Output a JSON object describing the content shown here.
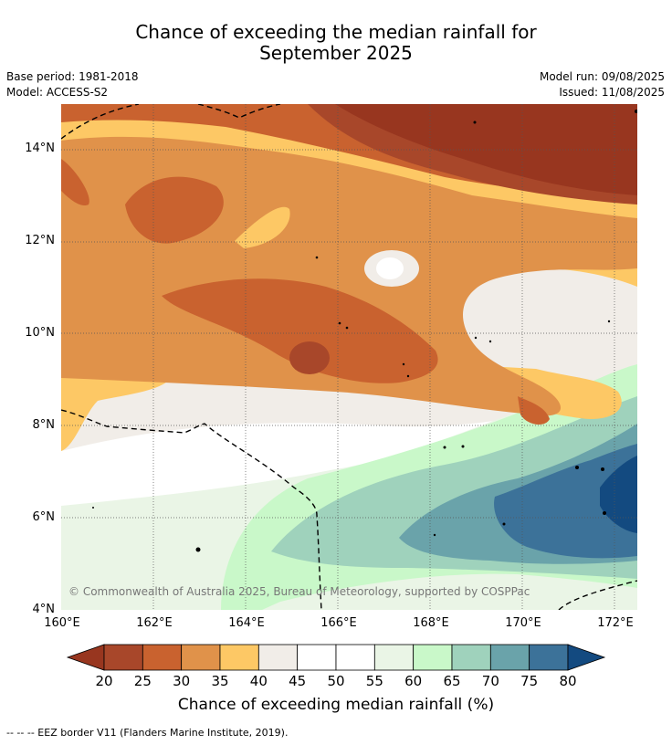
{
  "title_line1": "Chance of exceeding the median rainfall for",
  "title_line2": "September 2025",
  "base_period": "Base period: 1981-2018",
  "model": "Model: ACCESS-S2",
  "model_run": "Model run: 09/08/2025",
  "issued": "Issued: 11/08/2025",
  "copyright": "© Commonwealth of Australia 2025, Bureau of Meteorology, supported by COSPPac",
  "lat_ticks": [
    "14°N",
    "12°N",
    "10°N",
    "8°N",
    "6°N",
    "4°N"
  ],
  "lon_ticks": [
    "160°E",
    "162°E",
    "164°E",
    "166°E",
    "168°E",
    "170°E",
    "172°E"
  ],
  "colorbar": {
    "label": "Chance of exceeding median rainfall (%)",
    "ticks": [
      "20",
      "25",
      "30",
      "35",
      "40",
      "45",
      "50",
      "55",
      "60",
      "65",
      "70",
      "75",
      "80"
    ],
    "colors": [
      "#a8472a",
      "#c9622f",
      "#e0924a",
      "#fdc865",
      "#f1ede8",
      "#ffffff",
      "#ffffff",
      "#eaf5e6",
      "#c9f8c9",
      "#9fd2bc",
      "#6aa3aa",
      "#3c7299"
    ],
    "under_color": "#98361f",
    "over_color": "#134a80"
  },
  "footnote": "-- -- -- EEZ border V11 (Flanders Marine Institute, 2019)."
}
